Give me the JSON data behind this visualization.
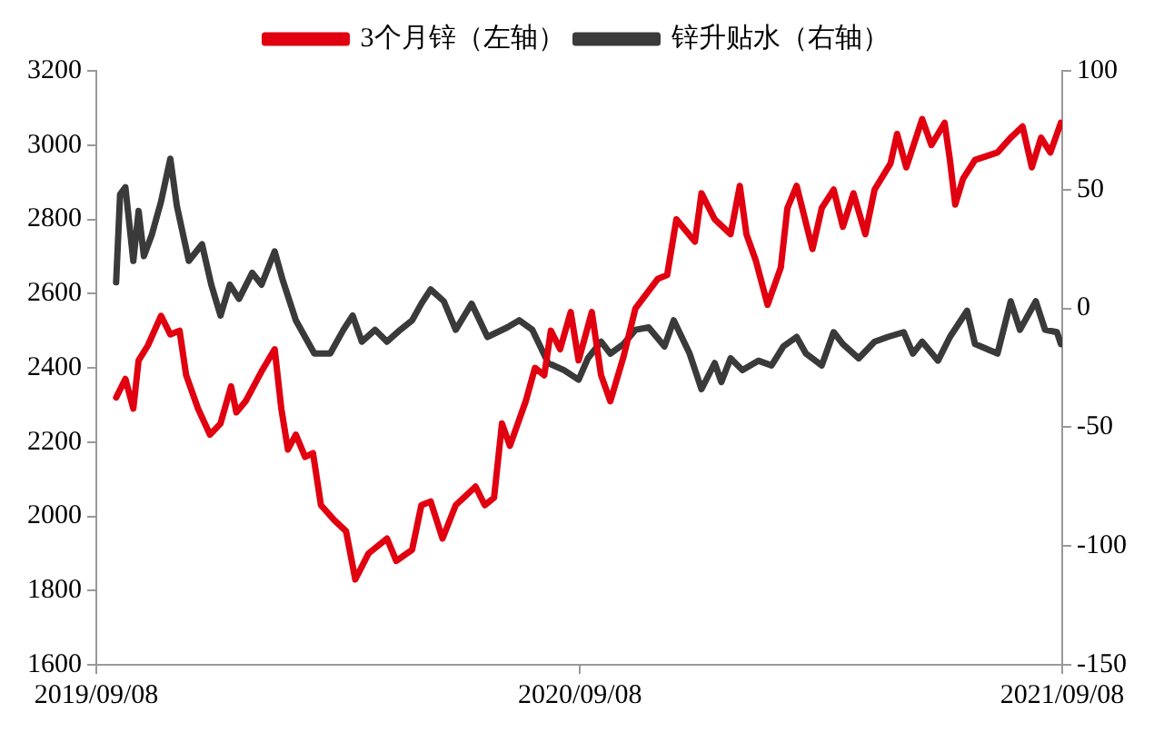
{
  "chart_data": {
    "type": "line",
    "legend": "top",
    "grid": false,
    "marker": "none",
    "line_style": "solid",
    "xlim": [
      "2019-09-08",
      "2021-09-08"
    ],
    "xticks": [
      {
        "value": "2019-09-08",
        "label": "2019/09/08"
      },
      {
        "value": "2020-09-08",
        "label": "2020/09/08"
      },
      {
        "value": "2021-09-08",
        "label": "2021/09/08"
      }
    ],
    "ylim": [
      1600,
      3200
    ],
    "yticks": [
      1600,
      1800,
      2000,
      2200,
      2400,
      2600,
      2800,
      3000,
      3200
    ],
    "y2lim": [
      -150,
      100
    ],
    "y2ticks": [
      -150,
      -100,
      -50,
      0,
      50,
      100
    ],
    "series": [
      {
        "name": "3个月锌（左轴）",
        "color": "#e00010",
        "x": [
          "2019-09-23",
          "2019-09-30",
          "2019-10-06",
          "2019-10-10",
          "2019-10-17",
          "2019-10-27",
          "2019-11-03",
          "2019-11-10",
          "2019-11-15",
          "2019-11-24",
          "2019-12-03",
          "2019-12-11",
          "2019-12-19",
          "2019-12-23",
          "2019-12-30",
          "2020-01-11",
          "2020-01-21",
          "2020-01-26",
          "2020-01-31",
          "2020-02-06",
          "2020-02-13",
          "2020-02-19",
          "2020-02-25",
          "2020-03-06",
          "2020-03-15",
          "2020-03-22",
          "2020-04-01",
          "2020-04-15",
          "2020-04-22",
          "2020-05-04",
          "2020-05-11",
          "2020-05-18",
          "2020-05-27",
          "2020-06-06",
          "2020-06-21",
          "2020-06-28",
          "2020-07-05",
          "2020-07-11",
          "2020-07-17",
          "2020-07-29",
          "2020-08-05",
          "2020-08-12",
          "2020-08-17",
          "2020-08-24",
          "2020-09-01",
          "2020-09-07",
          "2020-09-17",
          "2020-09-24",
          "2020-10-01",
          "2020-10-11",
          "2020-10-20",
          "2020-11-06",
          "2020-11-13",
          "2020-11-20",
          "2020-12-04",
          "2020-12-09",
          "2020-12-19",
          "2020-12-31",
          "2021-01-07",
          "2021-01-12",
          "2021-01-19",
          "2021-01-28",
          "2021-02-07",
          "2021-02-12",
          "2021-02-19",
          "2021-03-03",
          "2021-03-10",
          "2021-03-19",
          "2021-03-26",
          "2021-04-03",
          "2021-04-12",
          "2021-04-19",
          "2021-05-01",
          "2021-05-06",
          "2021-05-13",
          "2021-05-25",
          "2021-06-01",
          "2021-06-11",
          "2021-06-15",
          "2021-06-19",
          "2021-06-25",
          "2021-07-04",
          "2021-07-21",
          "2021-07-31",
          "2021-08-09",
          "2021-08-16",
          "2021-08-23",
          "2021-08-30",
          "2021-09-07"
        ],
        "values": [
          2320,
          2370,
          2290,
          2420,
          2460,
          2540,
          2490,
          2500,
          2380,
          2290,
          2220,
          2250,
          2350,
          2280,
          2310,
          2390,
          2450,
          2290,
          2180,
          2220,
          2160,
          2170,
          2030,
          1990,
          1960,
          1830,
          1900,
          1940,
          1880,
          1910,
          2030,
          2040,
          1940,
          2030,
          2080,
          2030,
          2050,
          2250,
          2190,
          2310,
          2400,
          2380,
          2500,
          2450,
          2550,
          2420,
          2550,
          2380,
          2310,
          2430,
          2560,
          2640,
          2650,
          2800,
          2740,
          2870,
          2800,
          2760,
          2890,
          2760,
          2690,
          2570,
          2670,
          2830,
          2890,
          2720,
          2830,
          2880,
          2780,
          2870,
          2760,
          2880,
          2950,
          3030,
          2940,
          3070,
          3000,
          3060,
          2960,
          2840,
          2910,
          2960,
          2980,
          3020,
          3050,
          2940,
          3020,
          2980,
          3060
        ]
      },
      {
        "name": "锌升贴水（右轴）",
        "color": "#3a3a3a",
        "axis": "y2",
        "x": [
          "2019-09-23",
          "2019-09-26",
          "2019-09-30",
          "2019-10-06",
          "2019-10-10",
          "2019-10-14",
          "2019-10-20",
          "2019-10-27",
          "2019-11-03",
          "2019-11-08",
          "2019-11-17",
          "2019-11-27",
          "2019-12-04",
          "2019-12-11",
          "2019-12-18",
          "2019-12-25",
          "2020-01-04",
          "2020-01-11",
          "2020-01-21",
          "2020-01-27",
          "2020-02-06",
          "2020-02-20",
          "2020-03-03",
          "2020-03-13",
          "2020-03-20",
          "2020-03-27",
          "2020-04-06",
          "2020-04-15",
          "2020-04-25",
          "2020-05-04",
          "2020-05-11",
          "2020-05-18",
          "2020-05-28",
          "2020-06-06",
          "2020-06-18",
          "2020-06-30",
          "2020-07-15",
          "2020-07-24",
          "2020-08-03",
          "2020-08-15",
          "2020-08-27",
          "2020-09-07",
          "2020-09-14",
          "2020-09-24",
          "2020-10-01",
          "2020-10-11",
          "2020-10-20",
          "2020-10-30",
          "2020-11-11",
          "2020-11-18",
          "2020-11-30",
          "2020-12-09",
          "2020-12-19",
          "2020-12-24",
          "2020-12-31",
          "2021-01-09",
          "2021-01-21",
          "2021-01-31",
          "2021-02-09",
          "2021-02-19",
          "2021-02-26",
          "2021-03-10",
          "2021-03-19",
          "2021-03-26",
          "2021-04-07",
          "2021-04-19",
          "2021-04-29",
          "2021-05-11",
          "2021-05-18",
          "2021-05-25",
          "2021-06-06",
          "2021-06-15",
          "2021-06-28",
          "2021-07-04",
          "2021-07-21",
          "2021-07-31",
          "2021-08-07",
          "2021-08-19",
          "2021-08-26",
          "2021-09-04",
          "2021-09-07"
        ],
        "values": [
          11,
          48,
          51,
          20,
          41,
          22,
          31,
          45,
          63,
          43,
          20,
          27,
          10,
          -3,
          10,
          4,
          15,
          10,
          24,
          12,
          -5,
          -19,
          -19,
          -9,
          -3,
          -14,
          -9,
          -14,
          -9,
          -5,
          2,
          8,
          3,
          -9,
          2,
          -12,
          -8,
          -5,
          -9,
          -23,
          -26,
          -30,
          -21,
          -14,
          -19,
          -15,
          -9,
          -8,
          -16,
          -5,
          -19,
          -34,
          -23,
          -31,
          -21,
          -26,
          -22,
          -24,
          -16,
          -12,
          -19,
          -24,
          -10,
          -15,
          -21,
          -14,
          -12,
          -10,
          -19,
          -14,
          -22,
          -12,
          -1,
          -15,
          -19,
          3,
          -9,
          3,
          -9,
          -10,
          -15
        ]
      }
    ]
  }
}
